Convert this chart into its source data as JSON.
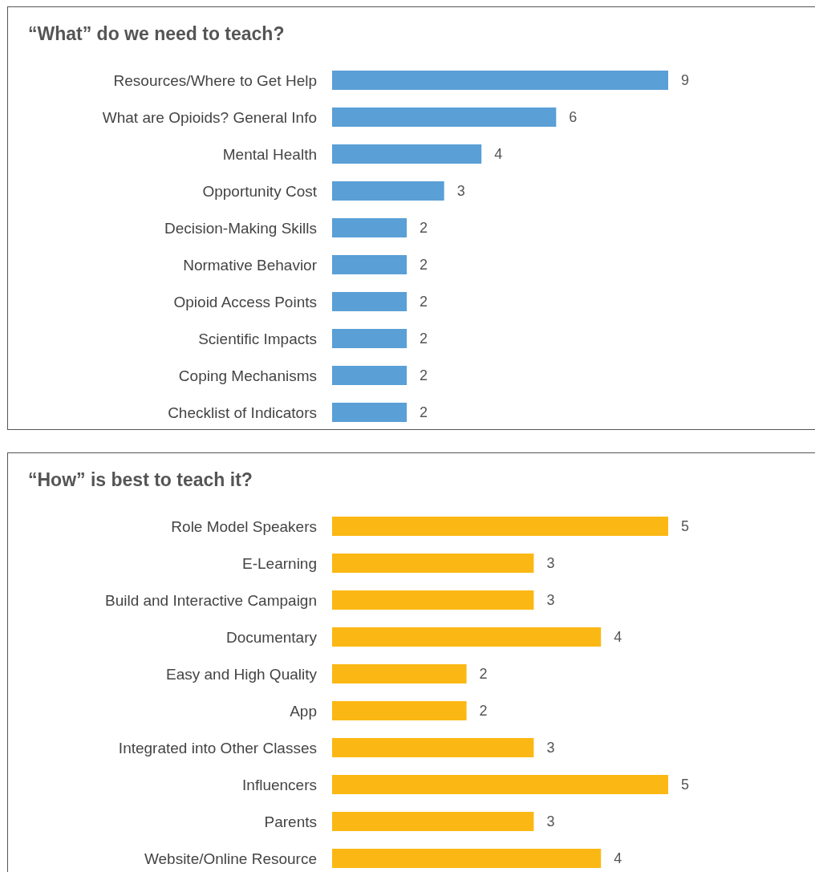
{
  "chart_data": [
    {
      "type": "bar",
      "orientation": "horizontal",
      "title": "“What” do we need to teach?",
      "categories": [
        "Resources/Where to Get Help",
        "What are Opioids? General Info",
        "Mental Health",
        "Opportunity Cost",
        "Decision-Making Skills",
        "Normative Behavior",
        "Opioid Access Points",
        "Scientific Impacts",
        "Coping Mechanisms",
        "Checklist of Indicators"
      ],
      "values": [
        9,
        6,
        4,
        3,
        2,
        2,
        2,
        2,
        2,
        2
      ],
      "color": "#5a9fd6",
      "data_labels": true
    },
    {
      "type": "bar",
      "orientation": "horizontal",
      "title": "“How” is best to teach it?",
      "categories": [
        "Role Model Speakers",
        "E-Learning",
        "Build and Interactive Campaign",
        "Documentary",
        "Easy and High Quality",
        "App",
        "Integrated into Other Classes",
        "Influencers",
        "Parents",
        "Website/Online Resource"
      ],
      "values": [
        5,
        3,
        3,
        4,
        2,
        2,
        3,
        5,
        3,
        4
      ],
      "color": "#fbb814",
      "data_labels": true
    }
  ]
}
